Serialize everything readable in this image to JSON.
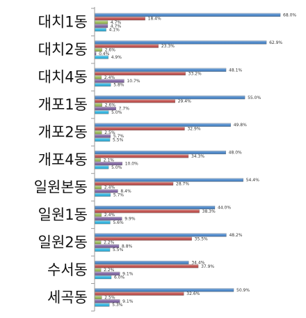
{
  "chart_data": {
    "type": "bar",
    "orientation": "horizontal",
    "categories": [
      "대치1동",
      "대치2동",
      "대치4동",
      "개포1동",
      "개포2동",
      "개포4동",
      "일원본동",
      "일원1동",
      "일원2동",
      "수서동",
      "세곡동"
    ],
    "series": [
      {
        "color": "#4a86c8",
        "values": [
          68.0,
          62.9,
          48.1,
          55.0,
          49.8,
          48.0,
          54.4,
          44.0,
          48.2,
          34.4,
          50.9
        ],
        "labels": [
          "68.0%",
          "62.9%",
          "48.1%",
          "55.0%",
          "49.8%",
          "48.0%",
          "54.4%",
          "44.0%",
          "48.2%",
          "34.4%",
          "50.9%"
        ]
      },
      {
        "color": "#c0504d",
        "values": [
          18.4,
          23.3,
          33.2,
          29.4,
          32.9,
          34.3,
          28.7,
          38.3,
          35.5,
          37.9,
          32.6
        ],
        "labels": [
          "18.4%",
          "23.3%",
          "33.2%",
          "29.4%",
          "32.9%",
          "34.3%",
          "28.7%",
          "38.3%",
          "35.5%",
          "37.9%",
          "32.6%"
        ]
      },
      {
        "color": "#9bbb59",
        "values": [
          4.7,
          2.6,
          2.4,
          2.6,
          2.5,
          2.1,
          2.4,
          2.4,
          2.2,
          2.2,
          2.5
        ],
        "labels": [
          "4.7%",
          "2.6%",
          "2.4%",
          "2.6%",
          "2.5%",
          "2.1%",
          "2.4%",
          "2.4%",
          "2.2%",
          "2.2%",
          "2.5%"
        ]
      },
      {
        "color": "#8064a2",
        "values": [
          4.7,
          0.4,
          10.7,
          7.7,
          5.7,
          10.0,
          8.4,
          9.9,
          8.8,
          9.1,
          9.1
        ],
        "labels": [
          "4.7%",
          "0.4%",
          "10.7%",
          "7.7%",
          "5.7%",
          "10.0%",
          "8.4%",
          "9.9%",
          "8.8%",
          "9.1%",
          "9.1%"
        ]
      },
      {
        "color": "#31b4e0",
        "values": [
          4.1,
          4.9,
          5.8,
          5.0,
          5.5,
          5.0,
          5.7,
          5.6,
          5.5,
          6.0,
          5.3
        ],
        "labels": [
          "4.1%",
          "4.9%",
          "5.8%",
          "5.0%",
          "5.5%",
          "5.0%",
          "5.7%",
          "5.6%",
          "5.5%",
          "6.0%",
          "5.3%"
        ]
      }
    ],
    "xlim": [
      0,
      75
    ],
    "grid": false,
    "legend": "none"
  }
}
